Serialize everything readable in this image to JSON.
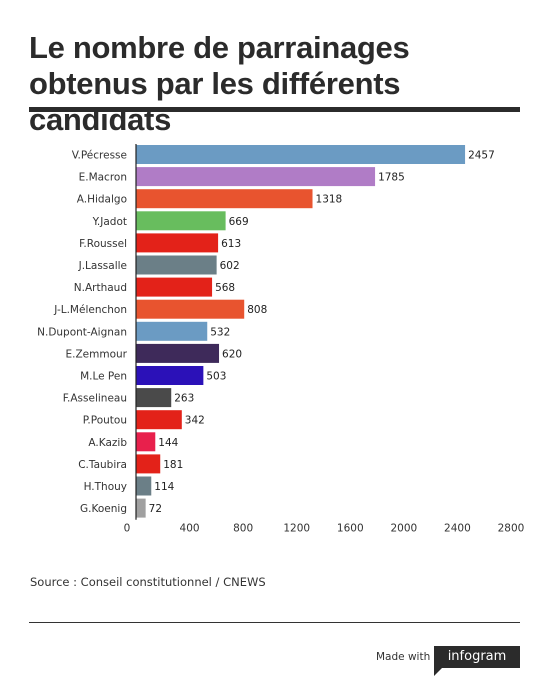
{
  "title": "Le nombre de parrainages obtenus par les différents candidats",
  "source": "Source : Conseil constitutionnel / CNEWS",
  "footer": {
    "made_with": "Made with",
    "brand": "infogram"
  },
  "chart_data": {
    "type": "bar",
    "orientation": "horizontal",
    "categories": [
      "V.Pécresse",
      "E.Macron",
      "A.Hidalgo",
      "Y.Jadot",
      "F.Roussel",
      "J.Lassalle",
      "N.Arthaud",
      "J-L.Mélenchon",
      "N.Dupont-Aignan",
      "E.Zemmour",
      "M.Le Pen",
      "F.Asselineau",
      "P.Poutou",
      "A.Kazib",
      "C.Taubira",
      "H.Thouy",
      "G.Koenig"
    ],
    "values": [
      2457,
      1785,
      1318,
      669,
      613,
      602,
      568,
      808,
      532,
      620,
      503,
      263,
      342,
      144,
      181,
      114,
      72
    ],
    "colors": [
      "#6b9bc3",
      "#b07cc6",
      "#e8542f",
      "#68bd5e",
      "#e32219",
      "#6b7f87",
      "#e32219",
      "#e8542f",
      "#6b9bc3",
      "#3e2a5a",
      "#2b11b8",
      "#4a4a4a",
      "#e32219",
      "#e8204c",
      "#e32219",
      "#6b7f87",
      "#a0a0a0"
    ],
    "x_ticks": [
      0,
      400,
      800,
      1200,
      1600,
      2000,
      2400,
      2800
    ],
    "xlim": [
      0,
      2800
    ],
    "grid": false,
    "legend": "none"
  }
}
